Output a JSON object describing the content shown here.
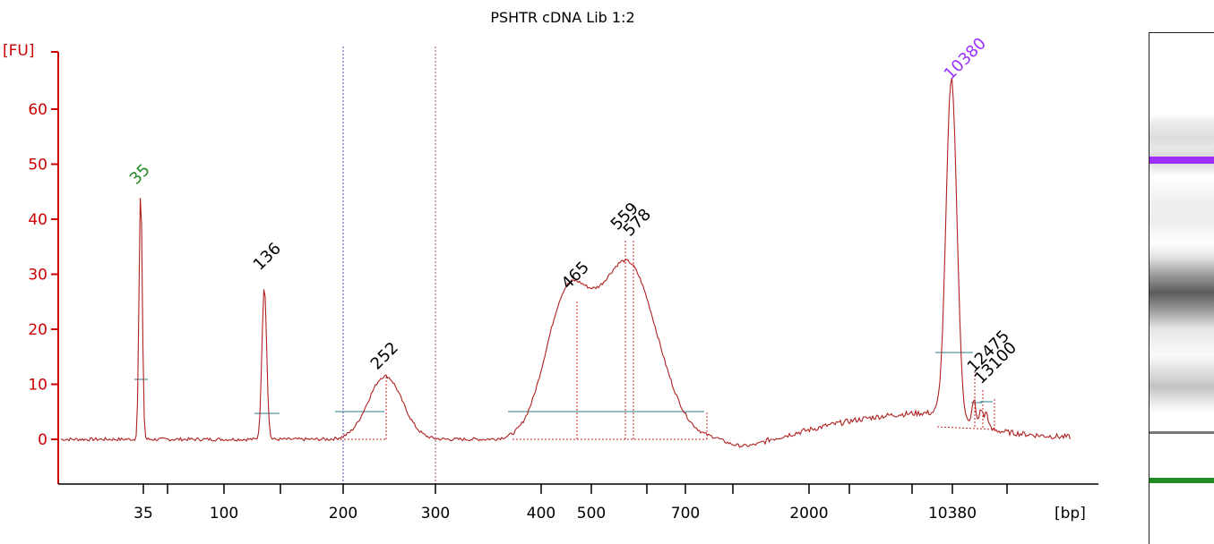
{
  "chart_data": {
    "type": "line",
    "title": "PSHTR cDNA Lib 1:2",
    "ylabel": "[FU]",
    "xlabel": "[bp]",
    "ylim": [
      -8,
      70
    ],
    "yticks": [
      "0",
      "10",
      "20",
      "30",
      "40",
      "50",
      "60"
    ],
    "xtick_labels": [
      "35",
      "100",
      "200",
      "300",
      "400",
      "500",
      "700",
      "2000",
      "10380"
    ],
    "colors": {
      "axis": "#cc0000",
      "trace": "#b02020",
      "fit": "#cc2020",
      "baseline": "#2e7d8c",
      "lower_marker": "#228b22",
      "upper_marker": "#9b30ff",
      "region_left": "#4a4aaa",
      "region_right": "#aa4a7a"
    },
    "peaks": [
      {
        "label": "35",
        "value": 45,
        "color": "#228b22"
      },
      {
        "label": "136",
        "value": 29,
        "color": "#000000"
      },
      {
        "label": "252",
        "value": 12,
        "color": "#000000"
      },
      {
        "label": "465",
        "value": 25.5,
        "color": "#000000"
      },
      {
        "label": "559",
        "value": 36.5,
        "color": "#000000"
      },
      {
        "label": "578",
        "value": 36,
        "color": "#000000"
      },
      {
        "label": "10380",
        "value": 64.5,
        "color": "#9b30ff"
      },
      {
        "label": "12475",
        "value": 12.5,
        "color": "#000000"
      },
      {
        "label": "13100",
        "value": 8.5,
        "color": "#000000"
      }
    ]
  },
  "gel": {
    "upper_marker_color": "#9b30ff",
    "lower_marker_color": "#228b22"
  }
}
